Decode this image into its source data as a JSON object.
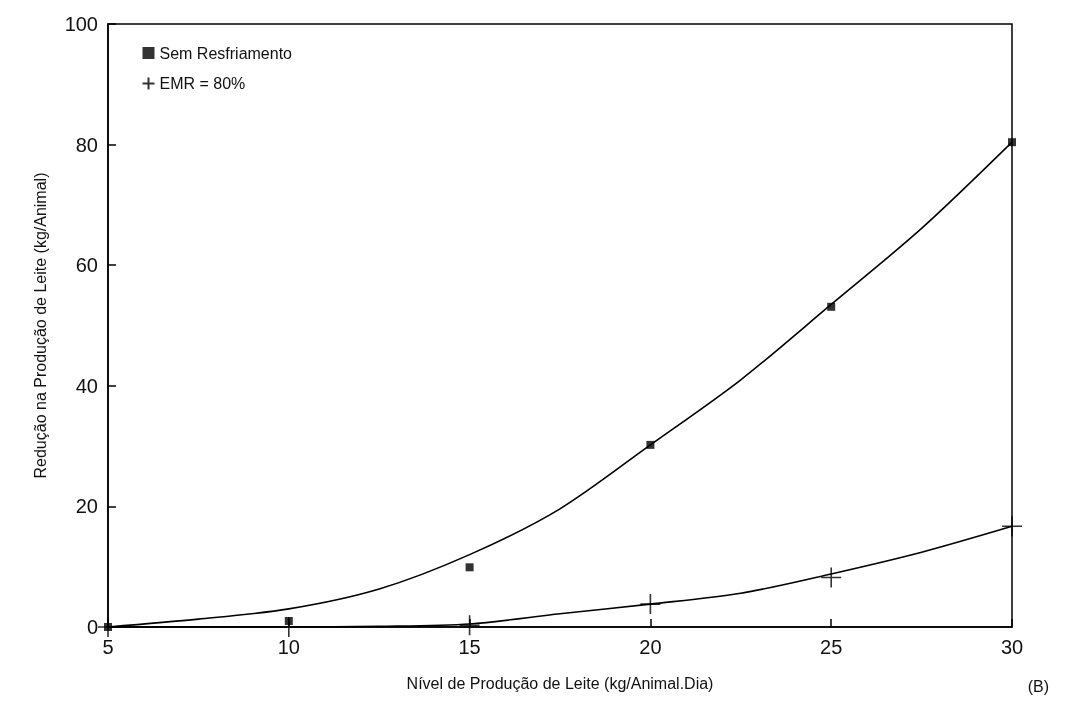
{
  "chart_data": {
    "type": "scatter",
    "xlabel": "Nível de Produção de Leite (kg/Animal.Dia)",
    "ylabel": "Redução na Produção de Leite (kg/Animal)",
    "annotations": [
      "(B)"
    ],
    "xlim": [
      5,
      30
    ],
    "xticks": [
      5,
      10,
      15,
      20,
      25,
      30
    ],
    "ylim": [
      0,
      100
    ],
    "yticks": [
      0,
      20,
      40,
      60,
      80,
      100
    ],
    "grid": false,
    "legend": "top left",
    "series": [
      {
        "name": "Sem Resfriamento",
        "marker": "square",
        "color": "#000000",
        "x": [
          5,
          10,
          15,
          20,
          25,
          30
        ],
        "values": [
          0,
          1,
          9.9,
          30.2,
          53.1,
          80.4
        ]
      },
      {
        "name": "EMR = 80%",
        "marker": "cross",
        "color": "#000000",
        "x": [
          5,
          10,
          15,
          20,
          25,
          30
        ],
        "values": [
          0,
          0,
          0.3,
          3.8,
          8.2,
          16.7
        ]
      },
      {
        "type": "line",
        "marker": "none",
        "color": "#000000",
        "x": [
          5,
          7.5,
          10,
          12.5,
          15,
          17.5,
          20,
          22.5,
          25,
          27.5,
          30
        ],
        "values": [
          0,
          1.3,
          3,
          6.3,
          12,
          19.6,
          30.2,
          41,
          53.5,
          66.1,
          80.4
        ]
      },
      {
        "type": "line",
        "marker": "none",
        "color": "#000000",
        "x": [
          5,
          7.5,
          10,
          12.5,
          15,
          17.5,
          20,
          22.5,
          25,
          27.5,
          30
        ],
        "values": [
          0,
          0,
          0,
          0.1,
          0.5,
          2.2,
          3.8,
          5.6,
          8.8,
          12.4,
          16.7
        ]
      }
    ]
  }
}
